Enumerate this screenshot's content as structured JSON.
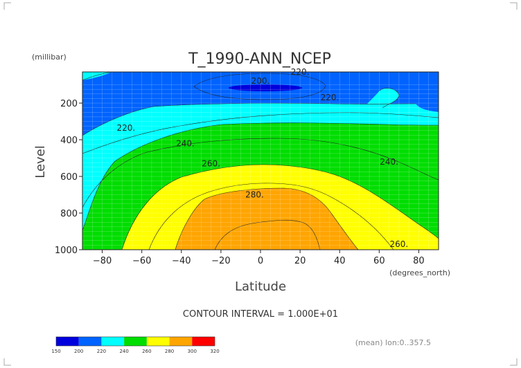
{
  "chart_data": {
    "type": "contour",
    "title": "T_1990-ANN_NCEP",
    "xlabel": "Latitude",
    "xunits": "(degrees_north)",
    "ylabel": "Level",
    "yunits": "(millibar)",
    "xlim": [
      -90,
      90
    ],
    "ylim": [
      1000,
      30
    ],
    "x_ticks": [
      -80,
      -60,
      -40,
      -20,
      0,
      20,
      40,
      60,
      80
    ],
    "x_tick_labels": [
      "−80",
      "−60",
      "−40",
      "−20",
      "0",
      "20",
      "40",
      "60",
      "80"
    ],
    "y_ticks": [
      200,
      400,
      600,
      800,
      1000
    ],
    "y_tick_labels": [
      "200",
      "400",
      "600",
      "800",
      "1000"
    ],
    "contour_interval_text": "CONTOUR INTERVAL = 1.000E+01",
    "contour_levels": [
      150,
      200,
      220,
      240,
      260,
      280,
      300,
      320
    ],
    "colorbar_labels": [
      "150",
      "200",
      "220",
      "240",
      "260",
      "280",
      "300",
      "320"
    ],
    "colorbar_colors": [
      "#0000dd",
      "#0063ff",
      "#00ffff",
      "#00dd00",
      "#ffff00",
      "#ffa500",
      "#ff0000"
    ],
    "contour_labels": [
      {
        "text": "220.",
        "lat": 20,
        "level": 30
      },
      {
        "text": "200.",
        "lat": 0,
        "level": 80
      },
      {
        "text": "220.",
        "lat": 35,
        "level": 170
      },
      {
        "text": "220.",
        "lat": -68,
        "level": 335
      },
      {
        "text": "240.",
        "lat": -38,
        "level": 420
      },
      {
        "text": "240.",
        "lat": 65,
        "level": 520
      },
      {
        "text": "260.",
        "lat": -25,
        "level": 530
      },
      {
        "text": "280.",
        "lat": -3,
        "level": 700
      },
      {
        "text": "260.",
        "lat": 70,
        "level": 970
      }
    ],
    "annotation": "(mean) lon:0..357.5"
  }
}
